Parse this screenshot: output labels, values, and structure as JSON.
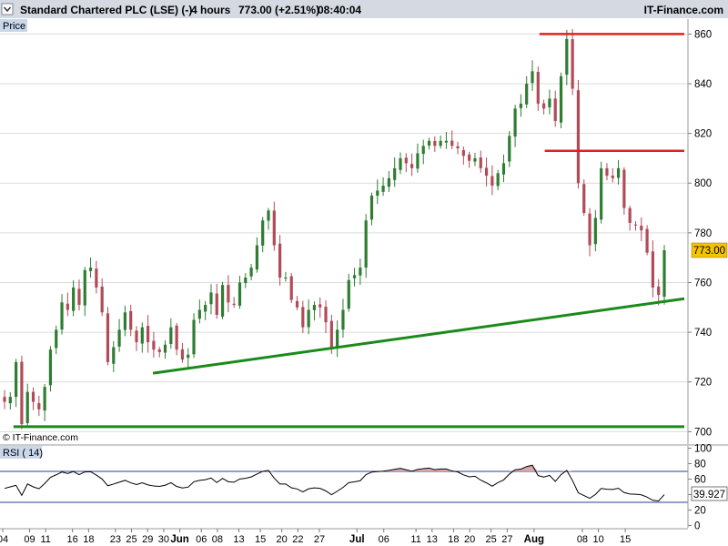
{
  "header": {
    "title": "Standard Chartered PLC (LSE) (-)",
    "timeframe": "4 hours",
    "quote": "773.00 (+2.51%)",
    "time": "08:40:04",
    "brand": "IT-Finance.com"
  },
  "watermark": "© IT-Finance.com",
  "colors": {
    "header_bg": "#d4d9e2",
    "panel_tag_bg": "#c9d7ea",
    "grid": "#dcdcdc",
    "up_candle": "#2e7d32",
    "down_candle": "#b24a58",
    "support_line": "#1a8a1a",
    "resistance_line": "#e41f1f",
    "price_badge_bg": "#f5c400",
    "rsi_line": "#000000",
    "rsi_level_line": "#2a3f8f",
    "rsi_overbought_fill": "#d9a7aa",
    "rsi_oversold_fill": "#8a9ab8"
  },
  "chart_data": [
    {
      "type": "candlestick",
      "panel_label": "Price",
      "current_price": 773.0,
      "current_price_label": "773.00",
      "ylim": [
        695,
        866
      ],
      "y_ticks": [
        700,
        720,
        740,
        760,
        780,
        800,
        820,
        840,
        860
      ],
      "x_range": [
        0,
        127
      ],
      "x_ticks": [
        {
          "x": 0,
          "label": "04"
        },
        {
          "x": 5,
          "label": "09"
        },
        {
          "x": 8,
          "label": "11"
        },
        {
          "x": 13,
          "label": "16"
        },
        {
          "x": 16,
          "label": "18"
        },
        {
          "x": 21,
          "label": "23"
        },
        {
          "x": 24,
          "label": "25"
        },
        {
          "x": 27,
          "label": "29"
        },
        {
          "x": 30,
          "label": "30"
        },
        {
          "x": 33,
          "label": "Jun",
          "bold": true
        },
        {
          "x": 37,
          "label": "06"
        },
        {
          "x": 40,
          "label": "08"
        },
        {
          "x": 44,
          "label": "13"
        },
        {
          "x": 48,
          "label": "15"
        },
        {
          "x": 52,
          "label": "20"
        },
        {
          "x": 55,
          "label": "22"
        },
        {
          "x": 59,
          "label": "27"
        },
        {
          "x": 66,
          "label": "Jul",
          "bold": true
        },
        {
          "x": 71,
          "label": "06"
        },
        {
          "x": 77,
          "label": "11"
        },
        {
          "x": 80,
          "label": "13"
        },
        {
          "x": 84,
          "label": "18"
        },
        {
          "x": 87,
          "label": "20"
        },
        {
          "x": 91,
          "label": "25"
        },
        {
          "x": 94,
          "label": "27"
        },
        {
          "x": 99,
          "label": "Aug",
          "bold": true
        },
        {
          "x": 108,
          "label": "08"
        },
        {
          "x": 111,
          "label": "10"
        },
        {
          "x": 116,
          "label": "15"
        }
      ],
      "closes": [
        712,
        714,
        728,
        703,
        716,
        712,
        709,
        718,
        733,
        741,
        752,
        749,
        758,
        751,
        765,
        766,
        758,
        748,
        728,
        734,
        741,
        748,
        741,
        736,
        742,
        736,
        733,
        732,
        735,
        742,
        733,
        729,
        731,
        745,
        749,
        751,
        756,
        747,
        759,
        752,
        751,
        760,
        762,
        766,
        775,
        785,
        789,
        775,
        762,
        762,
        753,
        750,
        742,
        749,
        751,
        750,
        744,
        734,
        741,
        749,
        761,
        763,
        766,
        785,
        795,
        797,
        799,
        802,
        806,
        810,
        808,
        806,
        812,
        815,
        817,
        815,
        817,
        817,
        815,
        814,
        811,
        809,
        810,
        806,
        803,
        799,
        804,
        808,
        819,
        830,
        832,
        840,
        845,
        832,
        830,
        834,
        825,
        843,
        858,
        838,
        800,
        788,
        775,
        786,
        806,
        803,
        802,
        806,
        790,
        784,
        783,
        781,
        772,
        758,
        755,
        773
      ],
      "support_lines": [
        {
          "x1": 2,
          "y1": 702,
          "x2": 127,
          "y2": 702
        },
        {
          "x1": 28,
          "y1": 723.5,
          "x2": 127,
          "y2": 753.5
        }
      ],
      "resistance_lines": [
        {
          "x1": 100,
          "y1": 860,
          "x2": 127,
          "y2": 860
        },
        {
          "x1": 101,
          "y1": 813,
          "x2": 127,
          "y2": 813
        }
      ]
    },
    {
      "type": "line",
      "panel_label": "RSI ( 14)",
      "current_value": 39.927,
      "current_value_label": "39.927",
      "ylim": [
        -3,
        103
      ],
      "y_ticks": [
        0,
        20,
        40,
        60,
        80,
        100
      ],
      "levels": [
        30,
        70
      ],
      "x_range": [
        0,
        127
      ]
    }
  ]
}
